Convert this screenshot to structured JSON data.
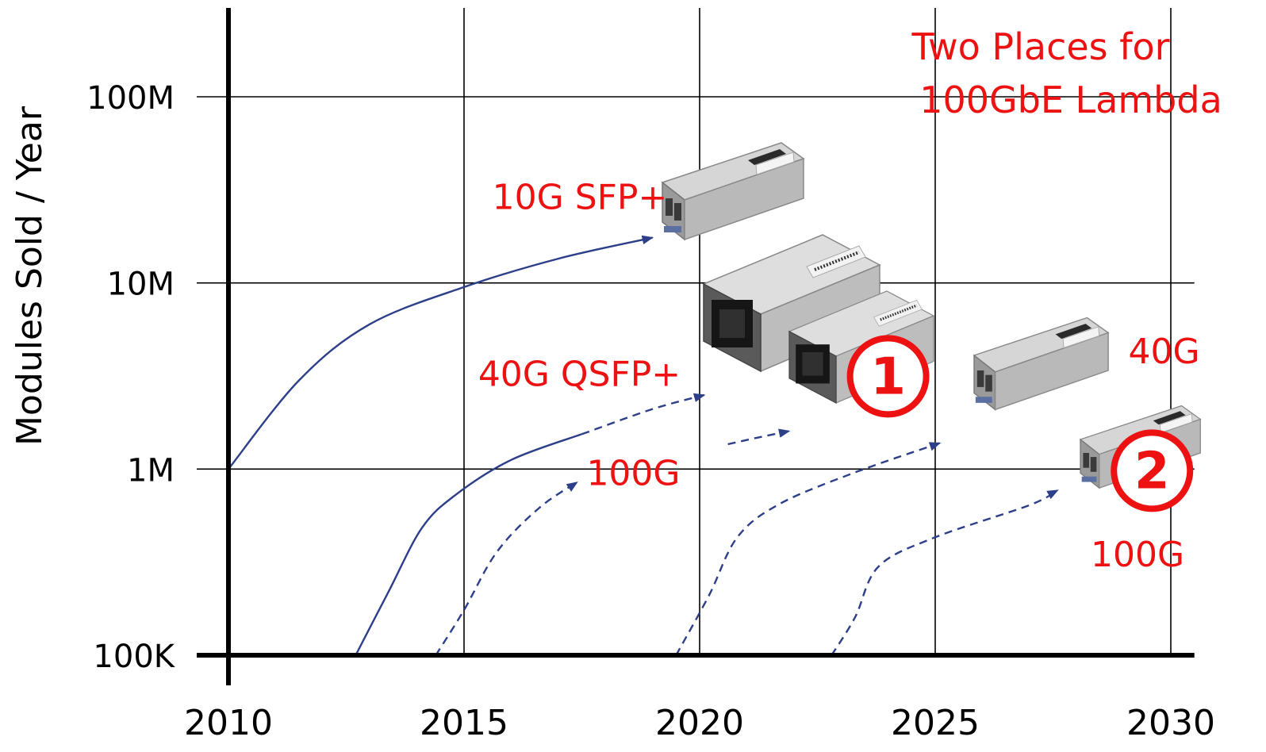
{
  "chart_data": {
    "type": "line",
    "title": "Two Places for 100GbE Lambda",
    "ylabel": "Modules Sold / Year",
    "xlabel": "",
    "x_ticks": [
      2010,
      2015,
      2020,
      2025,
      2030
    ],
    "x_tick_labels": [
      "2010",
      "2015",
      "2020",
      "2025",
      "2030"
    ],
    "y_ticks": [
      100000,
      1000000,
      10000000,
      100000000
    ],
    "y_tick_labels": [
      "100K",
      "1M",
      "10M",
      "100M"
    ],
    "xlim": [
      2010,
      2030.5
    ],
    "ylim": [
      100000,
      300000000
    ],
    "y_scale": "log",
    "grid": true,
    "series": [
      {
        "name": "10G SFP+",
        "style": "solid",
        "points": [
          [
            2010.0,
            1000000
          ],
          [
            2011.5,
            3000000
          ],
          [
            2013.0,
            6000000
          ],
          [
            2015.0,
            9500000
          ],
          [
            2017.0,
            13500000
          ],
          [
            2019.0,
            17500000
          ]
        ]
      },
      {
        "name": "40G QSFP+",
        "style": "solid",
        "points": [
          [
            2012.7,
            100000
          ],
          [
            2013.4,
            220000
          ],
          [
            2014.1,
            480000
          ],
          [
            2014.8,
            720000
          ],
          [
            2016.0,
            1120000
          ],
          [
            2017.5,
            1540000
          ]
        ]
      },
      {
        "name": "40G QSFP+",
        "style": "dashed",
        "points": [
          [
            2017.5,
            1540000
          ],
          [
            2019.0,
            2100000
          ],
          [
            2020.1,
            2500000
          ]
        ]
      },
      {
        "name": "100G",
        "style": "dashed",
        "points": [
          [
            2014.4,
            100000
          ],
          [
            2015.0,
            175000
          ],
          [
            2015.7,
            360000
          ],
          [
            2016.6,
            620000
          ],
          [
            2017.4,
            850000
          ]
        ]
      },
      {
        "name": "100G",
        "style": "dashed",
        "points": [
          [
            2020.6,
            1360000
          ],
          [
            2021.2,
            1470000
          ],
          [
            2021.9,
            1600000
          ]
        ]
      },
      {
        "name": "40G",
        "style": "dashed",
        "points": [
          [
            2019.5,
            100000
          ],
          [
            2020.2,
            210000
          ],
          [
            2020.8,
            430000
          ],
          [
            2021.7,
            650000
          ],
          [
            2023.3,
            960000
          ],
          [
            2025.1,
            1380000
          ]
        ]
      },
      {
        "name": "100G",
        "style": "dashed",
        "points": [
          [
            2022.8,
            100000
          ],
          [
            2023.3,
            160000
          ],
          [
            2023.8,
            300000
          ],
          [
            2025.0,
            430000
          ],
          [
            2027.0,
            640000
          ],
          [
            2027.6,
            770000
          ]
        ]
      }
    ],
    "annotations": [
      {
        "text": "10G SFP+",
        "x": 2015.6,
        "y": 25000000
      },
      {
        "text": "40G QSFP+",
        "x": 2015.3,
        "y": 2800000
      },
      {
        "text": "100G",
        "x": 2017.6,
        "y": 820000
      },
      {
        "text": "40G",
        "x": 2029.1,
        "y": 3700000
      },
      {
        "text": "100G",
        "x": 2028.3,
        "y": 300000
      },
      {
        "text": "1",
        "x": 2024.0,
        "y": 3150000,
        "circled": true
      },
      {
        "text": "2",
        "x": 2029.6,
        "y": 980000,
        "circled": true
      }
    ]
  }
}
